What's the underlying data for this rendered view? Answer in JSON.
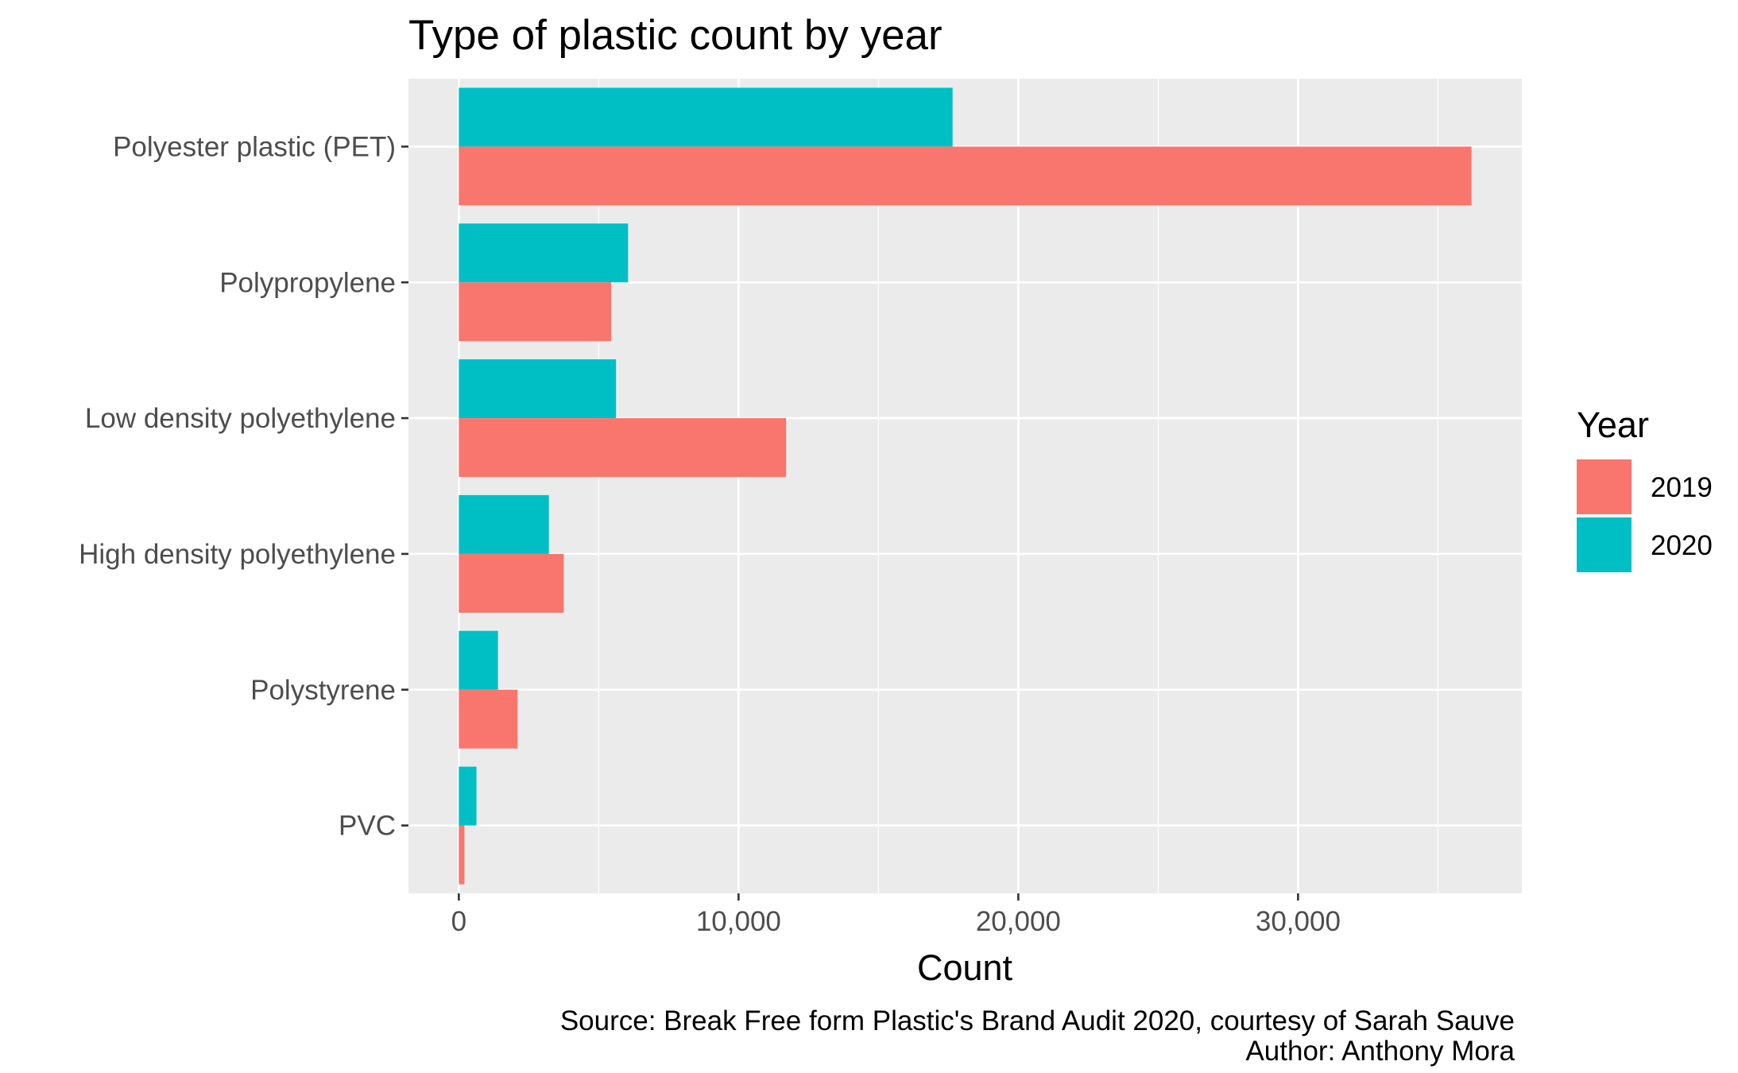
{
  "chart_data": {
    "type": "bar",
    "orientation": "horizontal",
    "title": "Type of plastic count by year",
    "xlabel": "Count",
    "ylabel": "",
    "categories": [
      "Polyester plastic (PET)",
      "Polypropylene",
      "Low density polyethylene",
      "High density polyethylene",
      "Polystyrene",
      "PVC"
    ],
    "series": [
      {
        "name": "2019",
        "color": "#F8766D",
        "values": [
          36200,
          5450,
          11700,
          3750,
          2100,
          200
        ]
      },
      {
        "name": "2020",
        "color": "#00BFC4",
        "values": [
          17650,
          6050,
          5620,
          3220,
          1400,
          630
        ]
      }
    ],
    "xlim": [
      -1800,
      38000
    ],
    "xticks": [
      0,
      10000,
      20000,
      30000
    ],
    "xtick_labels": [
      "0",
      "10,000",
      "20,000",
      "30,000"
    ],
    "grid": true,
    "legend": {
      "title": "Year",
      "position": "right"
    },
    "caption": [
      "Source: Break Free form Plastic's Brand Audit 2020, courtesy of Sarah Sauve",
      "Author: Anthony Mora"
    ]
  }
}
